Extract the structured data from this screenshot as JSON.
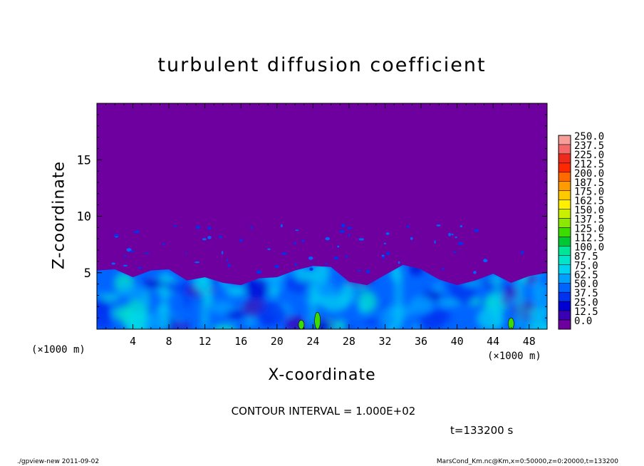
{
  "chart_data": {
    "type": "heatmap",
    "title": "turbulent diffusion coefficient",
    "xlabel": "X-coordinate",
    "ylabel": "Z-coordinate",
    "x_unit": "(×1000 m)",
    "xlim": [
      0,
      50
    ],
    "ylim": [
      0,
      20
    ],
    "x_ticks": [
      4,
      8,
      12,
      16,
      20,
      24,
      28,
      32,
      36,
      40,
      44,
      48
    ],
    "y_ticks": [
      5,
      10,
      15
    ],
    "colorbar": {
      "levels": [
        "250.0",
        "237.5",
        "225.0",
        "212.5",
        "200.0",
        "187.5",
        "175.0",
        "162.5",
        "150.0",
        "137.5",
        "125.0",
        "112.5",
        "100.0",
        "87.5",
        "75.0",
        "62.5",
        "50.0",
        "37.5",
        "25.0",
        "12.5",
        "0.0"
      ],
      "colors": [
        "#f59e9a",
        "#f5686a",
        "#ee2a1e",
        "#ff2800",
        "#ff6a00",
        "#ff9a00",
        "#ffc800",
        "#fff000",
        "#c8f000",
        "#8ce800",
        "#3cdc00",
        "#00c832",
        "#00e696",
        "#00e6c8",
        "#00d2f0",
        "#00a0ff",
        "#0064ff",
        "#0032f0",
        "#0000d2",
        "#3c00b4",
        "#6e00a0"
      ]
    },
    "surface_layer_top_km": [
      [
        0,
        5.2
      ],
      [
        2,
        5.3
      ],
      [
        4,
        4.6
      ],
      [
        6,
        5.2
      ],
      [
        8,
        5.3
      ],
      [
        10,
        4.3
      ],
      [
        12,
        4.6
      ],
      [
        14,
        4.1
      ],
      [
        16,
        3.9
      ],
      [
        18,
        4.5
      ],
      [
        20,
        4.6
      ],
      [
        22,
        5.2
      ],
      [
        24,
        5.6
      ],
      [
        26,
        5.5
      ],
      [
        28,
        4.2
      ],
      [
        30,
        3.9
      ],
      [
        32,
        4.8
      ],
      [
        34,
        5.7
      ],
      [
        36,
        5.3
      ],
      [
        38,
        4.4
      ],
      [
        40,
        3.9
      ],
      [
        42,
        4.3
      ],
      [
        44,
        4.9
      ],
      [
        46,
        4.1
      ],
      [
        48,
        4.7
      ],
      [
        50,
        5.0
      ]
    ],
    "green_cells_km": [
      [
        22.7,
        0.8
      ],
      [
        24.5,
        1.5
      ],
      [
        46,
        1.0
      ]
    ]
  },
  "contour_label": "CONTOUR INTERVAL = 1.000E+02",
  "time_label": "t=133200 s",
  "footer_left": "./gpview-new   2011-09-02",
  "footer_right": "MarsCond_Km.nc@Km,x=0:50000,z=0:20000,t=133200"
}
